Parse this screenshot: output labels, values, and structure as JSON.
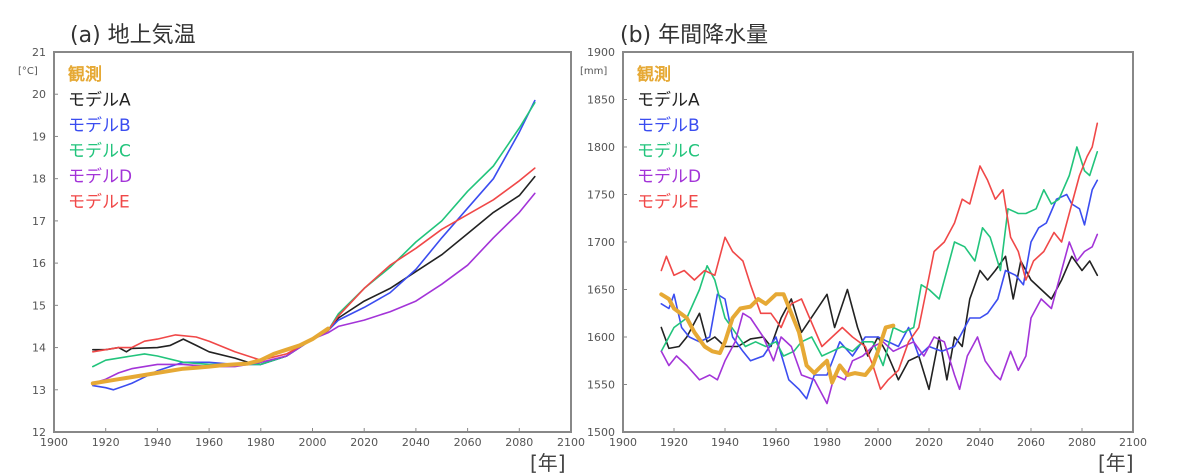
{
  "chart_data": [
    {
      "type": "line",
      "title": "(a) 地上気温",
      "ylabel": "[°C]",
      "xlabel": "[年]",
      "xlim": [
        1900,
        2100
      ],
      "ylim": [
        12,
        21
      ],
      "xticks": [
        1900,
        1920,
        1940,
        1960,
        1980,
        2000,
        2020,
        2040,
        2060,
        2080,
        2100
      ],
      "yticks": [
        12,
        13,
        14,
        15,
        16,
        17,
        18,
        19,
        20,
        21
      ],
      "grid": false,
      "legend_placement": "top-left",
      "series": [
        {
          "name": "観測",
          "color": "#e6a935",
          "width": 4,
          "x": [
            1915,
            1920,
            1925,
            1930,
            1935,
            1940,
            1945,
            1950,
            1955,
            1960,
            1965,
            1970,
            1975,
            1980,
            1985,
            1990,
            1995,
            2000,
            2006
          ],
          "y": [
            13.15,
            13.2,
            13.25,
            13.3,
            13.35,
            13.4,
            13.45,
            13.5,
            13.52,
            13.55,
            13.58,
            13.6,
            13.62,
            13.7,
            13.85,
            13.95,
            14.05,
            14.2,
            14.45
          ]
        },
        {
          "name": "モデルA",
          "color": "#222222",
          "width": 1.6,
          "x": [
            1915,
            1920,
            1925,
            1928,
            1930,
            1940,
            1945,
            1950,
            1955,
            1960,
            1970,
            1975,
            1980,
            1990,
            2000,
            2006,
            2010,
            2020,
            2030,
            2040,
            2050,
            2060,
            2070,
            2080,
            2086
          ],
          "y": [
            13.95,
            13.95,
            14.0,
            13.9,
            13.98,
            14.0,
            14.05,
            14.2,
            14.05,
            13.9,
            13.75,
            13.65,
            13.6,
            13.8,
            14.2,
            14.4,
            14.7,
            15.1,
            15.4,
            15.8,
            16.2,
            16.7,
            17.2,
            17.6,
            18.05
          ]
        },
        {
          "name": "モデルB",
          "color": "#3b4df0",
          "width": 1.6,
          "x": [
            1915,
            1920,
            1923,
            1930,
            1940,
            1950,
            1960,
            1970,
            1980,
            1990,
            2000,
            2006,
            2010,
            2020,
            2030,
            2040,
            2050,
            2060,
            2070,
            2080,
            2086
          ],
          "y": [
            13.1,
            13.05,
            13.0,
            13.15,
            13.45,
            13.65,
            13.65,
            13.6,
            13.6,
            13.8,
            14.2,
            14.4,
            14.65,
            14.95,
            15.3,
            15.85,
            16.6,
            17.3,
            18.0,
            19.1,
            19.85
          ]
        },
        {
          "name": "モデルC",
          "color": "#22c47c",
          "width": 1.6,
          "x": [
            1915,
            1920,
            1930,
            1935,
            1940,
            1950,
            1960,
            1970,
            1980,
            1990,
            2000,
            2006,
            2010,
            2020,
            2030,
            2040,
            2050,
            2060,
            2070,
            2080,
            2086
          ],
          "y": [
            13.55,
            13.7,
            13.8,
            13.85,
            13.8,
            13.65,
            13.6,
            13.6,
            13.6,
            13.8,
            14.2,
            14.4,
            14.8,
            15.4,
            15.9,
            16.5,
            17.0,
            17.7,
            18.3,
            19.2,
            19.8
          ]
        },
        {
          "name": "モデルD",
          "color": "#a334d8",
          "width": 1.6,
          "x": [
            1915,
            1920,
            1925,
            1930,
            1940,
            1950,
            1960,
            1970,
            1980,
            1990,
            2000,
            2006,
            2010,
            2020,
            2030,
            2040,
            2050,
            2060,
            2070,
            2080,
            2086
          ],
          "y": [
            13.15,
            13.25,
            13.4,
            13.5,
            13.6,
            13.6,
            13.55,
            13.55,
            13.65,
            13.8,
            14.2,
            14.35,
            14.5,
            14.65,
            14.85,
            15.1,
            15.5,
            15.95,
            16.6,
            17.2,
            17.65
          ]
        },
        {
          "name": "モデルE",
          "color": "#f04848",
          "width": 1.6,
          "x": [
            1915,
            1920,
            1925,
            1930,
            1935,
            1940,
            1947,
            1955,
            1960,
            1970,
            1980,
            1990,
            2000,
            2006,
            2010,
            2020,
            2030,
            2040,
            2050,
            2060,
            2070,
            2080,
            2086
          ],
          "y": [
            13.9,
            13.95,
            14.0,
            14.0,
            14.15,
            14.2,
            14.3,
            14.25,
            14.15,
            13.9,
            13.7,
            13.85,
            14.2,
            14.4,
            14.75,
            15.4,
            15.95,
            16.35,
            16.8,
            17.15,
            17.5,
            17.95,
            18.25
          ]
        }
      ]
    },
    {
      "type": "line",
      "title": "(b) 年間降水量",
      "ylabel": "[mm]",
      "xlabel": "[年]",
      "xlim": [
        1900,
        2100
      ],
      "ylim": [
        1500,
        1900
      ],
      "xticks": [
        1900,
        1920,
        1940,
        1960,
        1980,
        2000,
        2020,
        2040,
        2060,
        2080,
        2100
      ],
      "yticks": [
        1500,
        1550,
        1600,
        1650,
        1700,
        1750,
        1800,
        1850,
        1900
      ],
      "grid": false,
      "legend_placement": "top-left",
      "series": [
        {
          "name": "観測",
          "color": "#e6a935",
          "width": 4,
          "x": [
            1915,
            1918,
            1920,
            1925,
            1928,
            1932,
            1935,
            1938,
            1940,
            1943,
            1946,
            1950,
            1953,
            1956,
            1960,
            1963,
            1966,
            1969,
            1972,
            1975,
            1978,
            1980,
            1982,
            1985,
            1988,
            1991,
            1995,
            1998,
            2000,
            2003,
            2006
          ],
          "y": [
            1645,
            1640,
            1630,
            1620,
            1605,
            1590,
            1585,
            1583,
            1595,
            1620,
            1630,
            1632,
            1640,
            1635,
            1645,
            1645,
            1625,
            1605,
            1570,
            1562,
            1570,
            1575,
            1552,
            1570,
            1560,
            1562,
            1560,
            1570,
            1585,
            1610,
            1612
          ]
        },
        {
          "name": "モデルA",
          "color": "#222222",
          "width": 1.6,
          "x": [
            1915,
            1918,
            1922,
            1925,
            1930,
            1933,
            1936,
            1940,
            1945,
            1950,
            1955,
            1958,
            1962,
            1966,
            1970,
            1975,
            1980,
            1983,
            1988,
            1992,
            1996,
            2000,
            2004,
            2008,
            2012,
            2016,
            2020,
            2024,
            2027,
            2030,
            2033,
            2036,
            2040,
            2043,
            2046,
            2050,
            2053,
            2056,
            2060,
            2064,
            2068,
            2072,
            2076,
            2080,
            2083,
            2086
          ],
          "y": [
            1610,
            1588,
            1590,
            1600,
            1625,
            1595,
            1600,
            1590,
            1590,
            1598,
            1600,
            1590,
            1620,
            1640,
            1605,
            1625,
            1645,
            1610,
            1650,
            1610,
            1580,
            1600,
            1580,
            1555,
            1575,
            1580,
            1545,
            1600,
            1555,
            1600,
            1590,
            1640,
            1670,
            1660,
            1670,
            1685,
            1640,
            1680,
            1660,
            1650,
            1640,
            1660,
            1685,
            1670,
            1680,
            1665
          ]
        },
        {
          "name": "モデルB",
          "color": "#3b4df0",
          "width": 1.6,
          "x": [
            1915,
            1918,
            1920,
            1923,
            1926,
            1930,
            1934,
            1937,
            1940,
            1943,
            1947,
            1950,
            1955,
            1960,
            1965,
            1969,
            1972,
            1975,
            1980,
            1985,
            1990,
            1995,
            2000,
            2004,
            2008,
            2012,
            2016,
            2020,
            2025,
            2030,
            2033,
            2036,
            2040,
            2043,
            2047,
            2050,
            2054,
            2057,
            2060,
            2063,
            2066,
            2070,
            2074,
            2076,
            2079,
            2081,
            2084,
            2086
          ],
          "y": [
            1635,
            1630,
            1645,
            1610,
            1600,
            1595,
            1600,
            1645,
            1640,
            1600,
            1585,
            1575,
            1580,
            1600,
            1555,
            1545,
            1535,
            1560,
            1560,
            1595,
            1580,
            1600,
            1600,
            1595,
            1590,
            1610,
            1580,
            1590,
            1585,
            1590,
            1605,
            1620,
            1620,
            1625,
            1640,
            1670,
            1665,
            1655,
            1700,
            1715,
            1720,
            1745,
            1750,
            1740,
            1735,
            1718,
            1755,
            1765
          ]
        },
        {
          "name": "モデルC",
          "color": "#22c47c",
          "width": 1.6,
          "x": [
            1915,
            1918,
            1920,
            1925,
            1930,
            1933,
            1936,
            1940,
            1944,
            1948,
            1952,
            1956,
            1960,
            1963,
            1967,
            1970,
            1974,
            1978,
            1982,
            1986,
            1990,
            1994,
            1998,
            2002,
            2006,
            2010,
            2014,
            2017,
            2020,
            2024,
            2027,
            2030,
            2034,
            2038,
            2041,
            2044,
            2048,
            2051,
            2055,
            2058,
            2062,
            2065,
            2068,
            2071,
            2075,
            2078,
            2081,
            2083,
            2086
          ],
          "y": [
            1585,
            1600,
            1610,
            1620,
            1650,
            1675,
            1660,
            1620,
            1605,
            1590,
            1595,
            1590,
            1595,
            1580,
            1585,
            1595,
            1600,
            1580,
            1585,
            1590,
            1585,
            1595,
            1595,
            1570,
            1610,
            1605,
            1610,
            1655,
            1650,
            1640,
            1670,
            1700,
            1695,
            1680,
            1715,
            1705,
            1670,
            1735,
            1730,
            1730,
            1735,
            1755,
            1740,
            1745,
            1770,
            1800,
            1775,
            1770,
            1795
          ]
        },
        {
          "name": "モデルD",
          "color": "#a334d8",
          "width": 1.6,
          "x": [
            1915,
            1918,
            1921,
            1925,
            1930,
            1934,
            1937,
            1940,
            1944,
            1947,
            1950,
            1955,
            1959,
            1962,
            1966,
            1970,
            1975,
            1980,
            1983,
            1987,
            1990,
            1994,
            1998,
            2002,
            2006,
            2010,
            2014,
            2018,
            2022,
            2026,
            2030,
            2032,
            2035,
            2039,
            2042,
            2046,
            2048,
            2052,
            2055,
            2058,
            2060,
            2064,
            2068,
            2071,
            2075,
            2078,
            2081,
            2084,
            2086
          ],
          "y": [
            1585,
            1570,
            1580,
            1570,
            1555,
            1560,
            1555,
            1575,
            1595,
            1625,
            1620,
            1600,
            1575,
            1600,
            1590,
            1560,
            1555,
            1530,
            1560,
            1555,
            1575,
            1580,
            1590,
            1595,
            1585,
            1590,
            1595,
            1580,
            1600,
            1595,
            1560,
            1545,
            1580,
            1600,
            1575,
            1560,
            1555,
            1585,
            1565,
            1580,
            1620,
            1640,
            1630,
            1660,
            1700,
            1680,
            1690,
            1695,
            1708
          ]
        },
        {
          "name": "モデルE",
          "color": "#f04848",
          "width": 1.6,
          "x": [
            1915,
            1917,
            1920,
            1924,
            1928,
            1932,
            1936,
            1940,
            1943,
            1947,
            1950,
            1954,
            1958,
            1962,
            1966,
            1970,
            1974,
            1978,
            1982,
            1986,
            1990,
            1995,
            1998,
            2001,
            2004,
            2008,
            2012,
            2016,
            2019,
            2022,
            2026,
            2030,
            2033,
            2036,
            2040,
            2043,
            2046,
            2049,
            2052,
            2055,
            2058,
            2061,
            2065,
            2069,
            2072,
            2076,
            2079,
            2082,
            2084,
            2086
          ],
          "y": [
            1670,
            1685,
            1665,
            1670,
            1660,
            1670,
            1665,
            1705,
            1690,
            1680,
            1655,
            1625,
            1625,
            1610,
            1635,
            1640,
            1615,
            1590,
            1600,
            1610,
            1600,
            1590,
            1570,
            1545,
            1555,
            1565,
            1595,
            1610,
            1650,
            1690,
            1700,
            1720,
            1745,
            1740,
            1780,
            1765,
            1745,
            1755,
            1705,
            1690,
            1660,
            1680,
            1690,
            1710,
            1700,
            1740,
            1770,
            1790,
            1800,
            1825
          ]
        }
      ]
    }
  ]
}
